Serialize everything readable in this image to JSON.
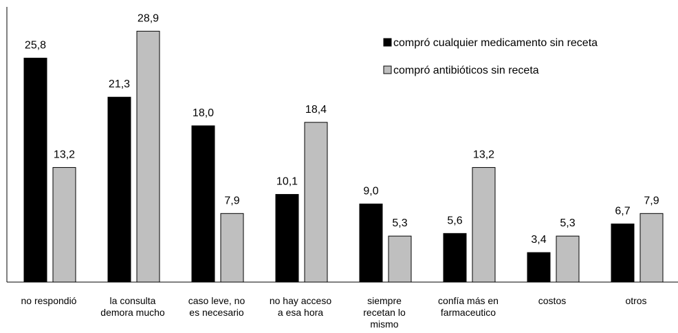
{
  "chart_data": {
    "type": "bar",
    "categories": [
      "no respondió",
      "la consulta\ndemora mucho",
      "caso leve, no\nes necesario",
      "no hay acceso\na esa hora",
      "siempre\nrecetan lo\nmismo",
      "confía más en\nfarmaceutico",
      "costos",
      "otros"
    ],
    "series": [
      {
        "name": "compró cualquier medicamento sin receta",
        "color": "#000000",
        "values": [
          25.8,
          21.3,
          18.0,
          10.1,
          9.0,
          5.6,
          3.4,
          6.7
        ],
        "value_labels": [
          "25,8",
          "21,3",
          "18,0",
          "10,1",
          "9,0",
          "5,6",
          "3,4",
          "6,7"
        ]
      },
      {
        "name": "compró antibióticos sin receta",
        "color": "#bfbfbf",
        "values": [
          13.2,
          28.9,
          7.9,
          18.4,
          5.3,
          13.2,
          5.3,
          7.9
        ],
        "value_labels": [
          "13,2",
          "28,9",
          "7,9",
          "18,4",
          "5,3",
          "13,2",
          "5,3",
          "7,9"
        ]
      }
    ],
    "ylim": [
      0,
      31.7
    ],
    "legend": "upper right"
  }
}
